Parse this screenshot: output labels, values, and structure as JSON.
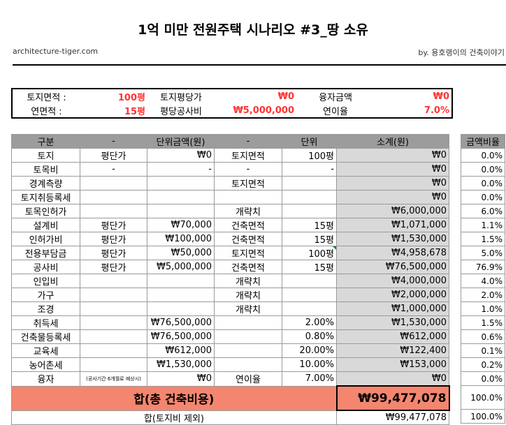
{
  "title": "1억 미만 전원주택 시나리오 #3_땅 소유",
  "site": "architecture-tiger.com",
  "author": "by. 용호랭이의 건축이야기",
  "summary": {
    "land_area_label": "토지면적 :",
    "land_area_value": "100평",
    "land_price_label": "토지평당가",
    "land_price_value": "₩0",
    "loan_label": "융자금액",
    "loan_value": "₩0",
    "floor_area_label": "연면적 :",
    "floor_area_value": "15평",
    "unit_cost_label": "평당공사비",
    "unit_cost_value": "₩5,000,000",
    "interest_label": "연이율",
    "interest_value": "7.0%"
  },
  "table": {
    "headers": [
      "구분",
      "-",
      "단위금액(원)",
      "-",
      "단위",
      "소계(원)"
    ],
    "rows": [
      {
        "name": "토지",
        "basis": "평단가",
        "unit_amount": "₩0",
        "basis2": "토지면적",
        "unit": "100평",
        "subtotal": "₩0"
      },
      {
        "name": "토목비",
        "basis": "-",
        "unit_amount": "-",
        "basis2": "-",
        "unit": "-",
        "subtotal": "₩0"
      },
      {
        "name": "경계측량",
        "basis": "",
        "unit_amount": "",
        "basis2": "토지면적",
        "unit": "",
        "subtotal": "₩0"
      },
      {
        "name": "토지취등록세",
        "basis": "",
        "unit_amount": "",
        "basis2": "",
        "unit": "",
        "subtotal": "₩0"
      },
      {
        "name": "토목인허가",
        "basis": "",
        "unit_amount": "",
        "basis2": "개략치",
        "unit": "",
        "subtotal": "₩6,000,000"
      },
      {
        "name": "설계비",
        "basis": "평단가",
        "unit_amount": "₩70,000",
        "basis2": "건축면적",
        "unit": "15평",
        "subtotal": "₩1,071,000"
      },
      {
        "name": "인허가비",
        "basis": "평단가",
        "unit_amount": "₩100,000",
        "basis2": "건축면적",
        "unit": "15평",
        "subtotal": "₩1,530,000"
      },
      {
        "name": "전용부담금",
        "basis": "평단가",
        "unit_amount": "₩50,000",
        "basis2": "토지면적",
        "unit": "100평",
        "subtotal": "₩4,958,678"
      },
      {
        "name": "공사비",
        "basis": "평단가",
        "unit_amount": "₩5,000,000",
        "basis2": "건축면적",
        "unit": "15평",
        "subtotal": "₩76,500,000"
      },
      {
        "name": "인입비",
        "basis": "",
        "unit_amount": "",
        "basis2": "개략치",
        "unit": "",
        "subtotal": "₩4,000,000"
      },
      {
        "name": "가구",
        "basis": "",
        "unit_amount": "",
        "basis2": "개략치",
        "unit": "",
        "subtotal": "₩2,000,000"
      },
      {
        "name": "조경",
        "basis": "",
        "unit_amount": "",
        "basis2": "개략치",
        "unit": "",
        "subtotal": "₩1,000,000"
      },
      {
        "name": "취득세",
        "basis": "",
        "unit_amount": "₩76,500,000",
        "basis2": "",
        "unit": "2.00%",
        "subtotal": "₩1,530,000"
      },
      {
        "name": "건축물등록세",
        "basis": "",
        "unit_amount": "₩76,500,000",
        "basis2": "",
        "unit": "0.80%",
        "subtotal": "₩612,000"
      },
      {
        "name": "교육세",
        "basis": "",
        "unit_amount": "₩612,000",
        "basis2": "",
        "unit": "20.00%",
        "subtotal": "₩122,400"
      },
      {
        "name": "농어촌세",
        "basis": "",
        "unit_amount": "₩1,530,000",
        "basis2": "",
        "unit": "10.00%",
        "subtotal": "₩153,000"
      },
      {
        "name": "융자",
        "basis": "(공사기간 6개월로 예상시)",
        "unit_amount": "₩0",
        "basis2": "연이율",
        "unit": "7.00%",
        "subtotal": "₩0"
      }
    ],
    "total_label": "합(총 건축비용)",
    "total_value": "₩99,477,078",
    "excl_label": "합(토지비 제외)",
    "excl_value": "₩99,477,078"
  },
  "ratio": {
    "header": "금액비율",
    "values": [
      "0.0%",
      "0.0%",
      "0.0%",
      "0.0%",
      "6.0%",
      "1.1%",
      "1.5%",
      "5.0%",
      "76.9%",
      "4.0%",
      "2.0%",
      "1.0%",
      "1.5%",
      "0.6%",
      "0.1%",
      "0.2%",
      "0.0%"
    ],
    "total": "100.0%",
    "excl": "100.0%"
  }
}
